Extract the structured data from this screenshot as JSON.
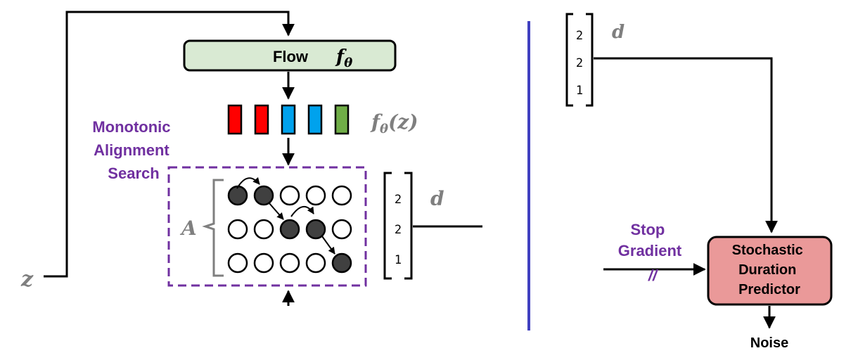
{
  "flow_box": {
    "label": "Flow",
    "symbol": "f",
    "subscript": "θ",
    "fill": "#d9ead3"
  },
  "flow_output": {
    "symbol": "f",
    "subscript": "θ",
    "suffix": "(z)"
  },
  "mas": {
    "label_lines": [
      "Monotonic",
      "Alignment",
      "Search"
    ],
    "color": "#7030a0"
  },
  "alignment_matrix": {
    "symbol": "A",
    "rows": [
      [
        1,
        1,
        0,
        0,
        0
      ],
      [
        0,
        0,
        1,
        1,
        0
      ],
      [
        0,
        0,
        0,
        0,
        1
      ]
    ]
  },
  "duration_vector_left": {
    "values": [
      "2",
      "2",
      "1"
    ],
    "symbol": "d"
  },
  "duration_vector_right": {
    "values": [
      "2",
      "2",
      "1"
    ],
    "symbol": "d"
  },
  "input": {
    "symbol": "z"
  },
  "stop_gradient": {
    "lines": [
      "Stop",
      "Gradient"
    ],
    "mark": "//"
  },
  "sdp_box": {
    "lines": [
      "Stochastic",
      "Duration",
      "Predictor"
    ],
    "fill": "#ea9999"
  },
  "noise": {
    "label": "Noise"
  },
  "colors": {
    "red": "#ff0000",
    "blue": "#00a2ed",
    "green": "#70ad47",
    "filled_circle": "#404040",
    "divider": "#4040c0",
    "gray_symbol": "#7f7f7f"
  },
  "token_colors": [
    "red",
    "red",
    "blue",
    "blue",
    "green"
  ]
}
